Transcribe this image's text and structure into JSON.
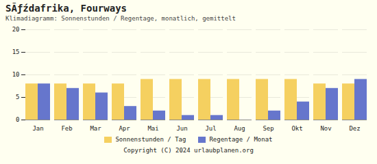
{
  "chart_data": {
    "type": "bar",
    "title": "SÃƒźdafrika, Fourways",
    "subtitle": "Klimadiagramm: Sonnenstunden / Regentage, monatlich, gemittelt",
    "categories": [
      "Jan",
      "Feb",
      "Mar",
      "Apr",
      "Mai",
      "Jun",
      "Jul",
      "Aug",
      "Sep",
      "Okt",
      "Nov",
      "Dez"
    ],
    "series": [
      {
        "name": "Sonnenstunden / Tag",
        "color": "#F5D060",
        "values": [
          8,
          8,
          8,
          8,
          9,
          9,
          9,
          9,
          9,
          9,
          8,
          8
        ]
      },
      {
        "name": "Regentage / Monat",
        "color": "#6676CC",
        "values": [
          8,
          7,
          6,
          3,
          2,
          1,
          1,
          0,
          2,
          4,
          7,
          9
        ]
      }
    ],
    "ylim": [
      0,
      20
    ],
    "yticks": [
      0,
      5,
      10,
      15,
      20
    ],
    "grid": true,
    "legend": "bottom",
    "annotations": [
      "Copyright (C) 2024 urlaubplanen.org"
    ]
  }
}
